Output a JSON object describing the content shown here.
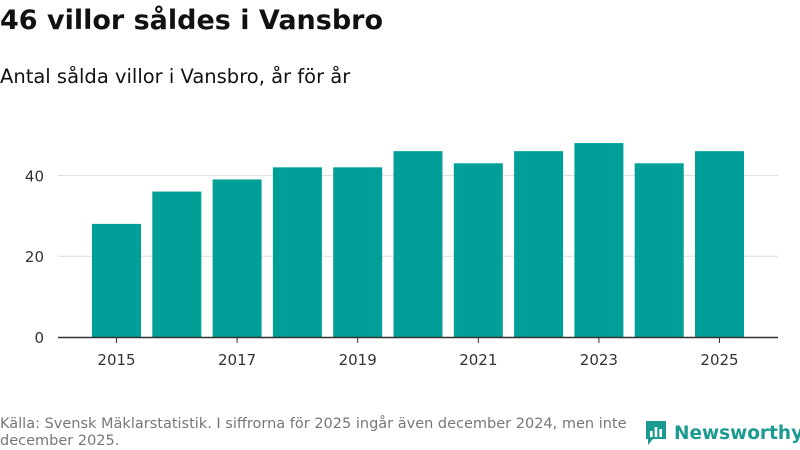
{
  "title": "46 villor såldes i Vansbro",
  "subtitle": "Antal sålda villor i Vansbro, år för år",
  "source": "Källa: Svensk Mäklarstatistik. I siffrorna för 2025 ingår även december 2024, men inte december 2025.",
  "logo": {
    "text": "Newsworthy",
    "color": "#1a9a90"
  },
  "colors": {
    "bar": "#00a098",
    "gridline": "#dddddd",
    "axis": "#333333"
  },
  "chart_data": {
    "type": "bar",
    "x": [
      2015,
      2016,
      2017,
      2018,
      2019,
      2020,
      2021,
      2022,
      2023,
      2024,
      2025
    ],
    "values": [
      28,
      36,
      39,
      42,
      42,
      46,
      43,
      46,
      48,
      43,
      46
    ],
    "x_tick_labels": [
      "2015",
      "2017",
      "2019",
      "2021",
      "2023",
      "2025"
    ],
    "y_ticks": [
      0,
      20,
      40
    ],
    "ylim": [
      0,
      50
    ],
    "grid": true,
    "legend": "none"
  }
}
